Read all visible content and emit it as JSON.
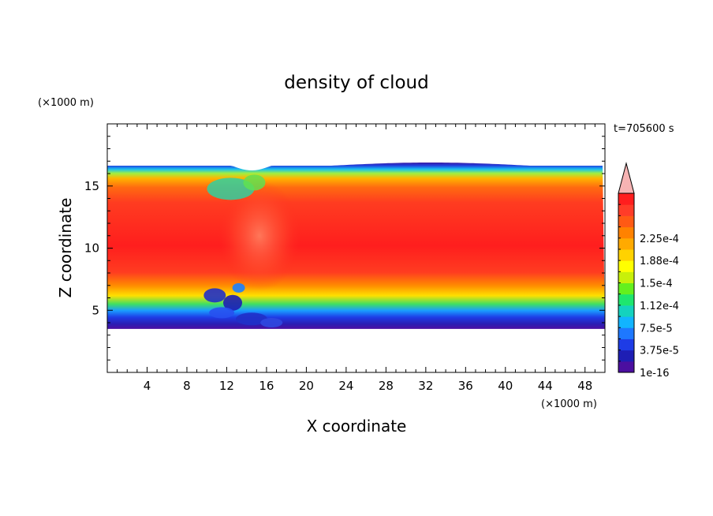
{
  "chart_data": {
    "type": "heatmap",
    "title": "density of cloud",
    "xlabel": "X coordinate",
    "ylabel": "Z coordinate",
    "x_unit": "(×1000 m)",
    "y_unit": "(×1000 m)",
    "time_label": "t=705600 s",
    "xlim": [
      0,
      50
    ],
    "ylim": [
      0,
      20
    ],
    "x_ticks": [
      4,
      8,
      12,
      16,
      20,
      24,
      28,
      32,
      36,
      40,
      44,
      48
    ],
    "y_ticks": [
      5,
      10,
      15
    ],
    "colorbar": {
      "labels": [
        "2.25e-4",
        "1.88e-4",
        "1.5e-4",
        "1.12e-4",
        "7.5e-5",
        "3.75e-5",
        "1e-16"
      ],
      "colors": [
        "#4b0fa0",
        "#1e1eb4",
        "#1e3ce6",
        "#1e78ff",
        "#12b4ff",
        "#14d2be",
        "#1ee66e",
        "#64f01e",
        "#c8f00a",
        "#ffff00",
        "#ffd200",
        "#ffaa00",
        "#ff8200",
        "#ff5a14",
        "#ff3c28",
        "#ff1e1e"
      ],
      "overflow_color": "#f6b3b3"
    },
    "cloud_layer": {
      "base_z": 3.5,
      "top_z": 16.7,
      "core_z": [
        8,
        14
      ],
      "turbulent_x": [
        12,
        17
      ]
    }
  }
}
